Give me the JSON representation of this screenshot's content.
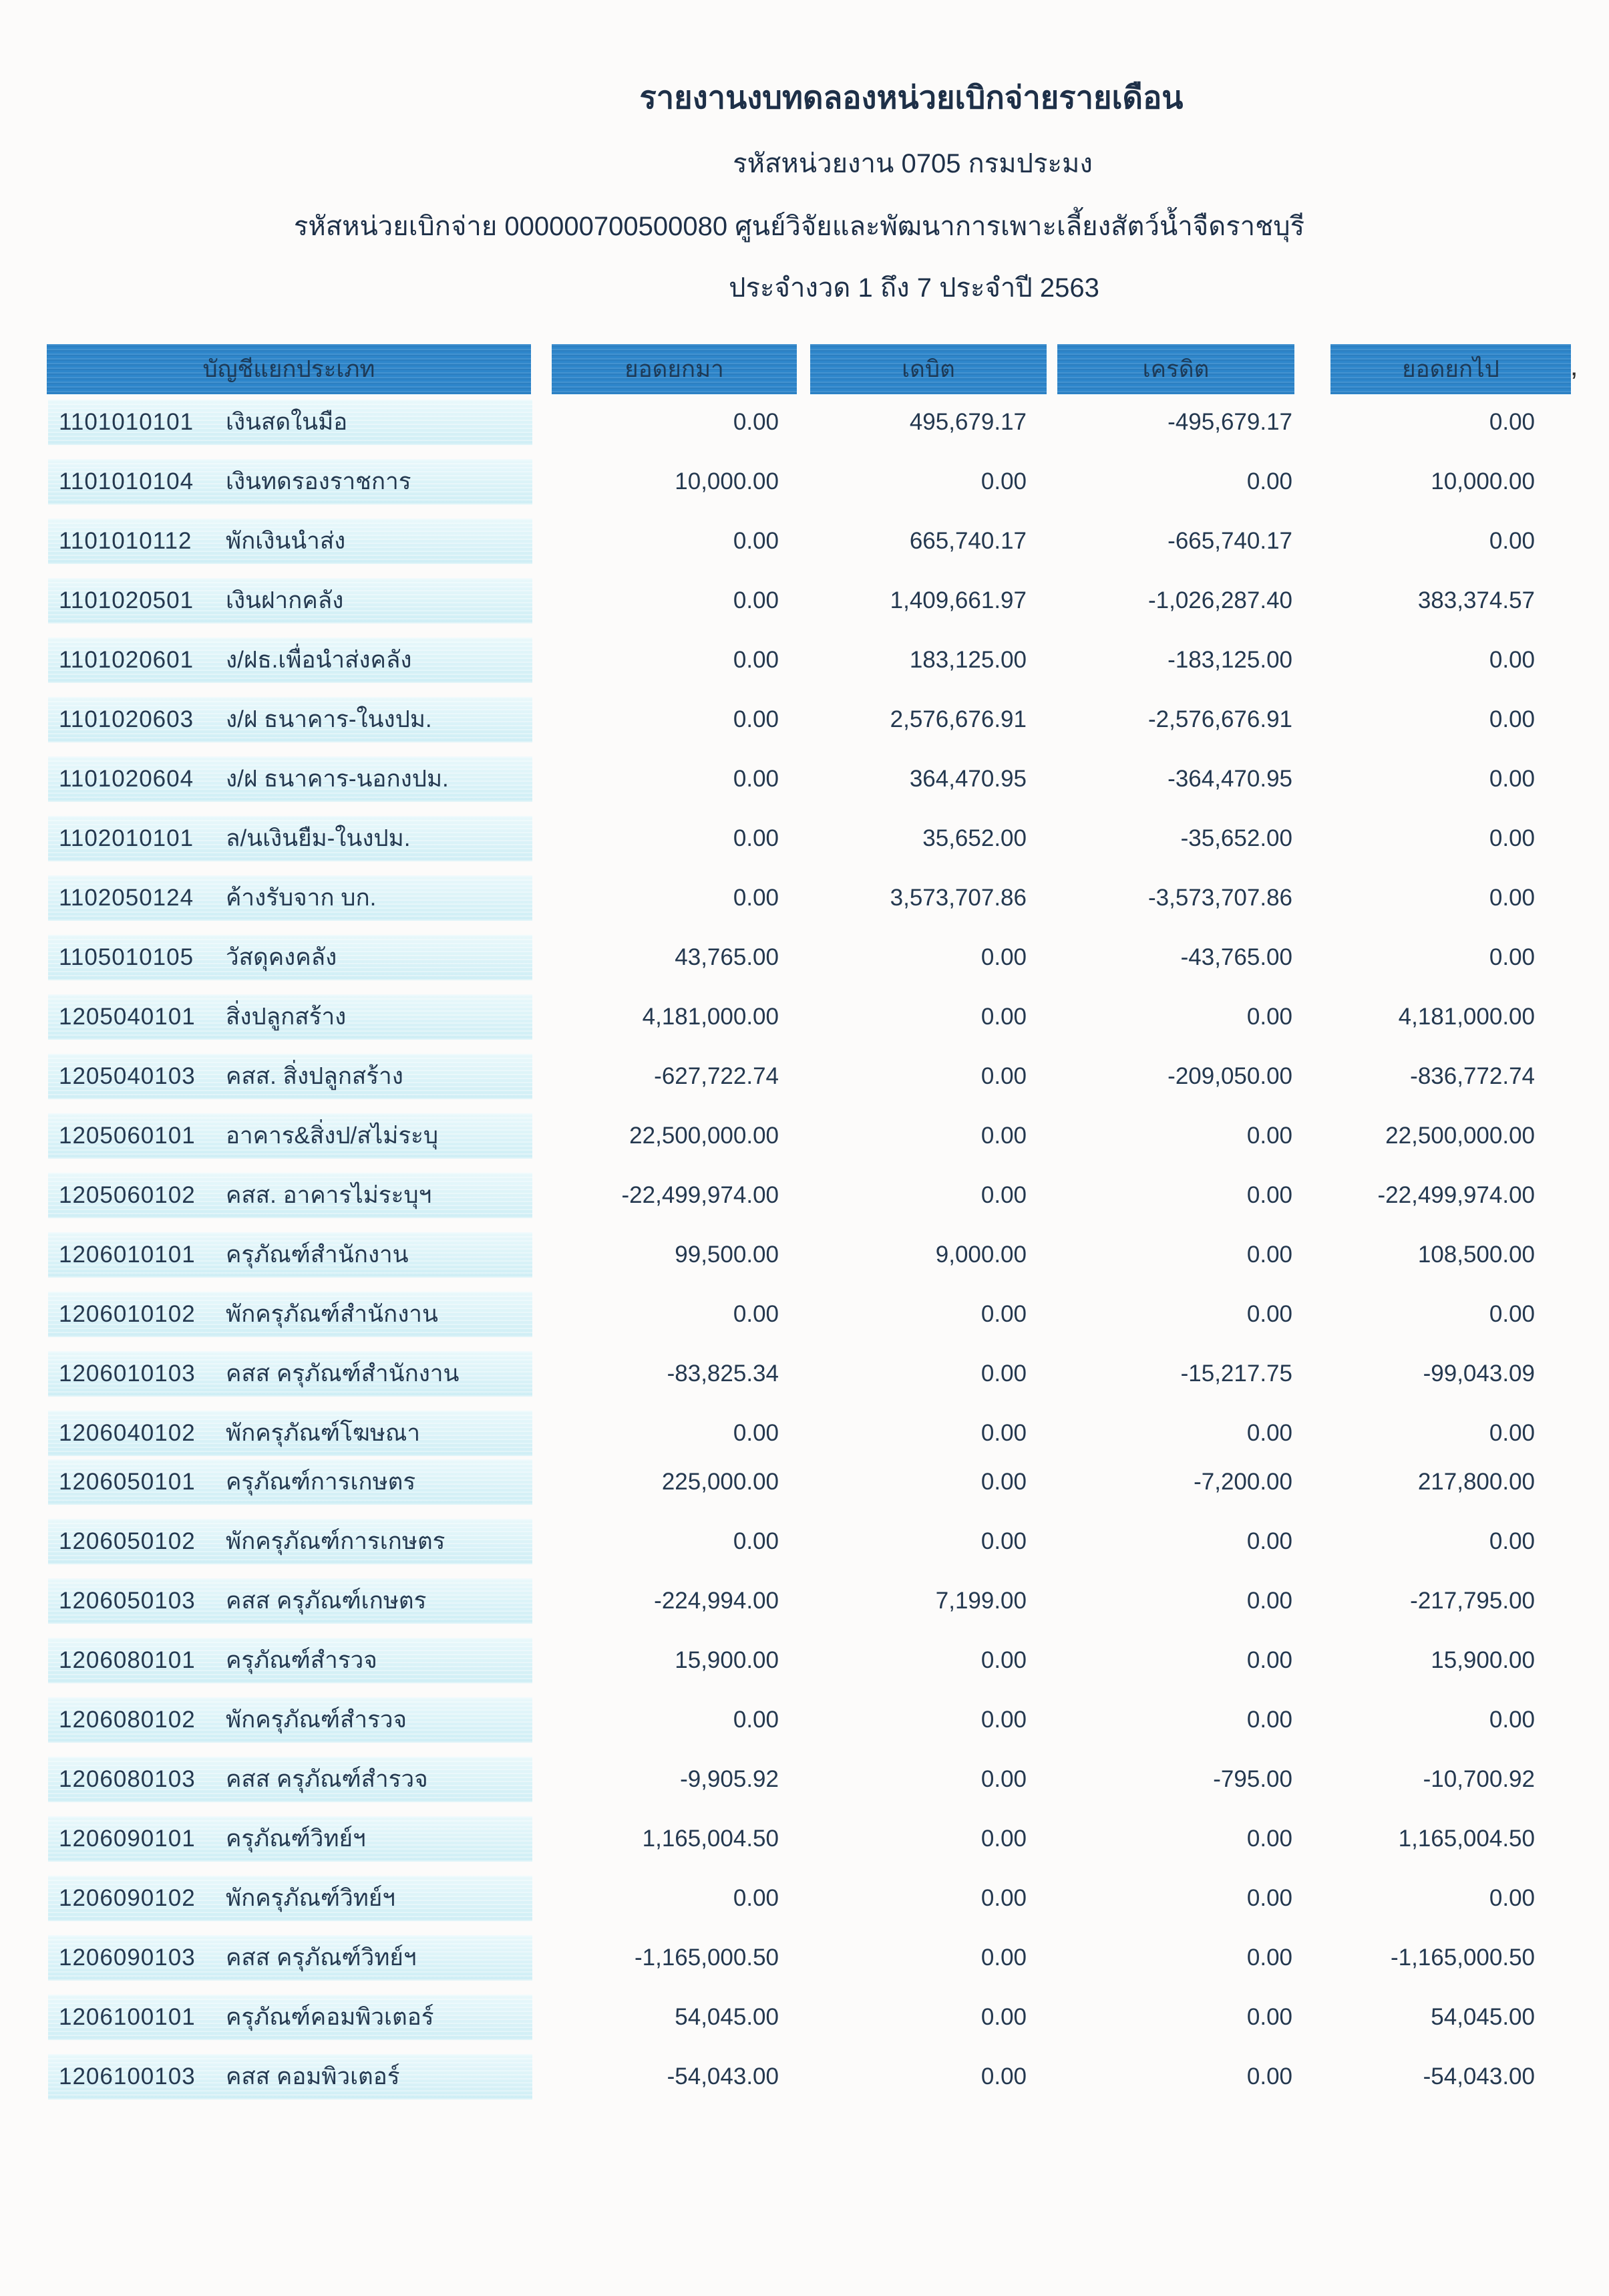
{
  "report": {
    "title": "รายงานงบทดลองหน่วยเบิกจ่ายรายเดือน",
    "agency_line": "รหัสหน่วยงาน 0705 กรมประมง",
    "unit_line": "รหัสหน่วยเบิกจ่าย 000000700500080 ศูนย์วิจัยและพัฒนาการเพาะเลี้ยงสัตว์น้ำจืดราชบุรี",
    "period_line": "ประจำงวด 1 ถึง 7 ประจำปี 2563"
  },
  "table": {
    "columns": [
      "บัญชีแยกประเภท",
      "ยอดยกมา",
      "เดบิต",
      "เครดิต",
      "ยอดยกไป"
    ],
    "rows": [
      {
        "code": "1101010101",
        "name": "เงินสดในมือ",
        "carry_forward": "0.00",
        "debit": "495,679.17",
        "credit": "-495,679.17",
        "balance": "0.00"
      },
      {
        "code": "1101010104",
        "name": "เงินทดรองราชการ",
        "carry_forward": "10,000.00",
        "debit": "0.00",
        "credit": "0.00",
        "balance": "10,000.00"
      },
      {
        "code": "1101010112",
        "name": "พักเงินนำส่ง",
        "carry_forward": "0.00",
        "debit": "665,740.17",
        "credit": "-665,740.17",
        "balance": "0.00"
      },
      {
        "code": "1101020501",
        "name": "เงินฝากคลัง",
        "carry_forward": "0.00",
        "debit": "1,409,661.97",
        "credit": "-1,026,287.40",
        "balance": "383,374.57"
      },
      {
        "code": "1101020601",
        "name": "ง/ฝธ.เพื่อนำส่งคลัง",
        "carry_forward": "0.00",
        "debit": "183,125.00",
        "credit": "-183,125.00",
        "balance": "0.00"
      },
      {
        "code": "1101020603",
        "name": "ง/ฝ ธนาคาร-ในงปม.",
        "carry_forward": "0.00",
        "debit": "2,576,676.91",
        "credit": "-2,576,676.91",
        "balance": "0.00"
      },
      {
        "code": "1101020604",
        "name": "ง/ฝ ธนาคาร-นอกงปม.",
        "carry_forward": "0.00",
        "debit": "364,470.95",
        "credit": "-364,470.95",
        "balance": "0.00"
      },
      {
        "code": "1102010101",
        "name": "ล/นเงินยืม-ในงปม.",
        "carry_forward": "0.00",
        "debit": "35,652.00",
        "credit": "-35,652.00",
        "balance": "0.00"
      },
      {
        "code": "1102050124",
        "name": "ค้างรับจาก บก.",
        "carry_forward": "0.00",
        "debit": "3,573,707.86",
        "credit": "-3,573,707.86",
        "balance": "0.00"
      },
      {
        "code": "1105010105",
        "name": "วัสดุคงคลัง",
        "carry_forward": "43,765.00",
        "debit": "0.00",
        "credit": "-43,765.00",
        "balance": "0.00"
      },
      {
        "code": "1205040101",
        "name": "สิ่งปลูกสร้าง",
        "carry_forward": "4,181,000.00",
        "debit": "0.00",
        "credit": "0.00",
        "balance": "4,181,000.00"
      },
      {
        "code": "1205040103",
        "name": "คสส. สิ่งปลูกสร้าง",
        "carry_forward": "-627,722.74",
        "debit": "0.00",
        "credit": "-209,050.00",
        "balance": "-836,772.74"
      },
      {
        "code": "1205060101",
        "name": "อาคาร&สิ่งป/สไม่ระบุ",
        "carry_forward": "22,500,000.00",
        "debit": "0.00",
        "credit": "0.00",
        "balance": "22,500,000.00"
      },
      {
        "code": "1205060102",
        "name": "คสส. อาคารไม่ระบุฯ",
        "carry_forward": "-22,499,974.00",
        "debit": "0.00",
        "credit": "0.00",
        "balance": "-22,499,974.00"
      },
      {
        "code": "1206010101",
        "name": "ครุภัณฑ์สำนักงาน",
        "carry_forward": "99,500.00",
        "debit": "9,000.00",
        "credit": "0.00",
        "balance": "108,500.00"
      },
      {
        "code": "1206010102",
        "name": "พักครุภัณฑ์สำนักงาน",
        "carry_forward": "0.00",
        "debit": "0.00",
        "credit": "0.00",
        "balance": "0.00"
      },
      {
        "code": "1206010103",
        "name": "คสส ครุภัณฑ์สำนักงาน",
        "carry_forward": "-83,825.34",
        "debit": "0.00",
        "credit": "-15,217.75",
        "balance": "-99,043.09"
      },
      {
        "code": "1206040102",
        "name": "พักครุภัณฑ์โฆษณา",
        "carry_forward": "0.00",
        "debit": "0.00",
        "credit": "0.00",
        "balance": "0.00",
        "tight": true
      },
      {
        "code": "1206050101",
        "name": "ครุภัณฑ์การเกษตร",
        "carry_forward": "225,000.00",
        "debit": "0.00",
        "credit": "-7,200.00",
        "balance": "217,800.00"
      },
      {
        "code": "1206050102",
        "name": "พักครุภัณฑ์การเกษตร",
        "carry_forward": "0.00",
        "debit": "0.00",
        "credit": "0.00",
        "balance": "0.00"
      },
      {
        "code": "1206050103",
        "name": "คสส ครุภัณฑ์เกษตร",
        "carry_forward": "-224,994.00",
        "debit": "7,199.00",
        "credit": "0.00",
        "balance": "-217,795.00"
      },
      {
        "code": "1206080101",
        "name": "ครุภัณฑ์สำรวจ",
        "carry_forward": "15,900.00",
        "debit": "0.00",
        "credit": "0.00",
        "balance": "15,900.00"
      },
      {
        "code": "1206080102",
        "name": "พักครุภัณฑ์สำรวจ",
        "carry_forward": "0.00",
        "debit": "0.00",
        "credit": "0.00",
        "balance": "0.00"
      },
      {
        "code": "1206080103",
        "name": "คสส ครุภัณฑ์สำรวจ",
        "carry_forward": "-9,905.92",
        "debit": "0.00",
        "credit": "-795.00",
        "balance": "-10,700.92"
      },
      {
        "code": "1206090101",
        "name": "ครุภัณฑ์วิทย์ฯ",
        "carry_forward": "1,165,004.50",
        "debit": "0.00",
        "credit": "0.00",
        "balance": "1,165,004.50"
      },
      {
        "code": "1206090102",
        "name": "พักครุภัณฑ์วิทย์ฯ",
        "carry_forward": "0.00",
        "debit": "0.00",
        "credit": "0.00",
        "balance": "0.00"
      },
      {
        "code": "1206090103",
        "name": "คสส ครุภัณฑ์วิทย์ฯ",
        "carry_forward": "-1,165,000.50",
        "debit": "0.00",
        "credit": "0.00",
        "balance": "-1,165,000.50"
      },
      {
        "code": "1206100101",
        "name": "ครุภัณฑ์คอมพิวเตอร์",
        "carry_forward": "54,045.00",
        "debit": "0.00",
        "credit": "0.00",
        "balance": "54,045.00"
      },
      {
        "code": "1206100103",
        "name": "คสส คอมพิวเตอร์",
        "carry_forward": "-54,043.00",
        "debit": "0.00",
        "credit": "0.00",
        "balance": "-54,043.00"
      }
    ]
  },
  "artifacts": {
    "header_stray_mark": "’"
  },
  "colors": {
    "page_bg": "#fcfbfa",
    "header_blue": "#2e86cb",
    "header_ink": "#1d3a57",
    "band_light": "#e9f8fb",
    "band_cyan": "#cfeef5",
    "ink": "#24384f",
    "heading_ink": "#1e3048"
  }
}
